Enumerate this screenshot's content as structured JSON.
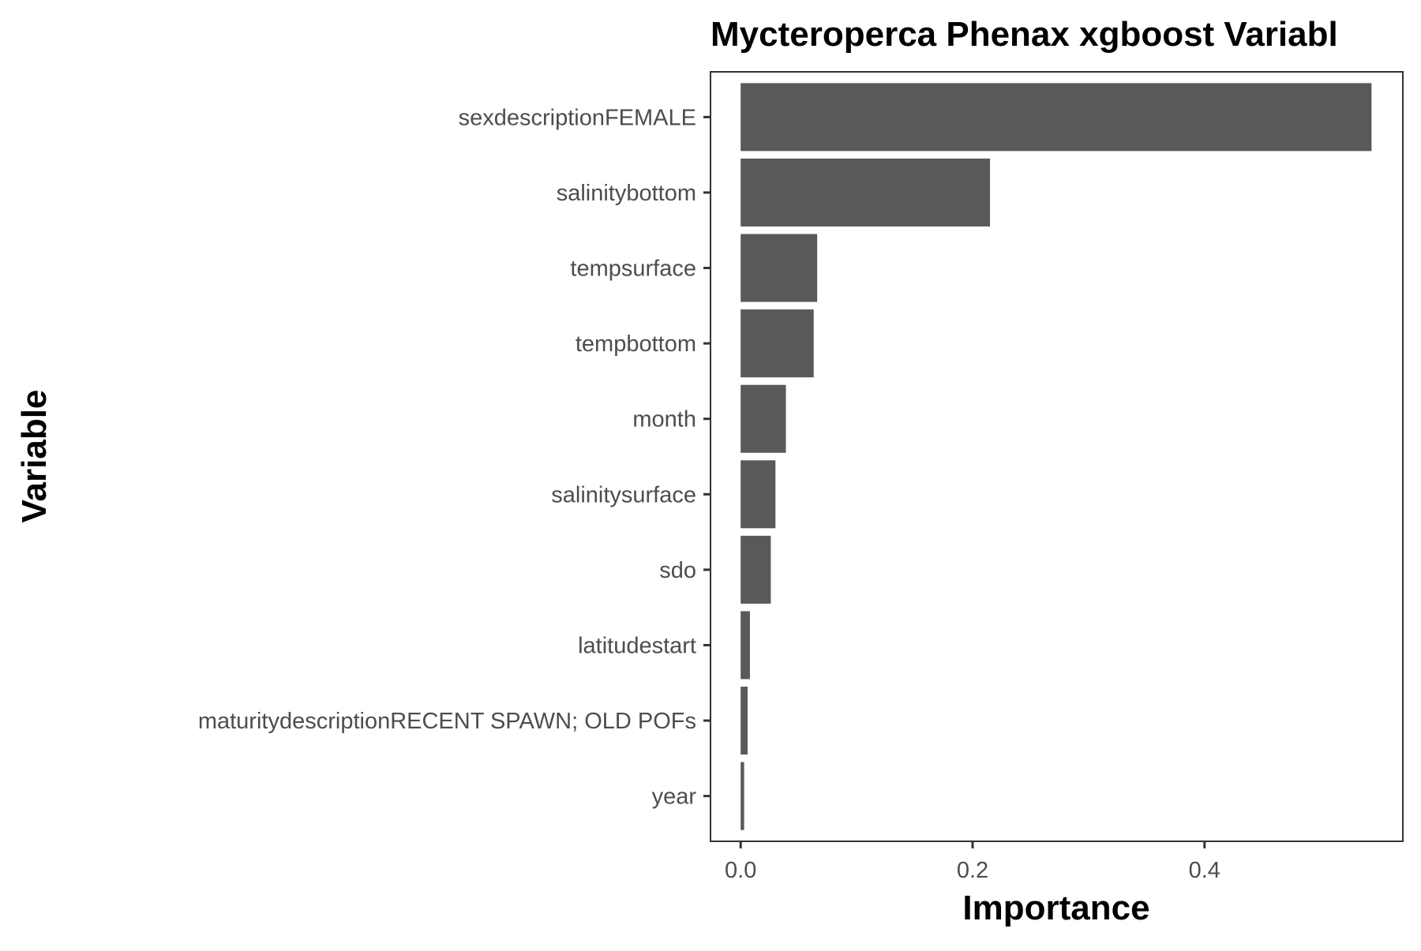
{
  "chart_data": {
    "type": "bar",
    "orientation": "horizontal",
    "title": "Mycteroperca Phenax xgboost Variabl",
    "xlabel": "Importance",
    "ylabel": "Variable",
    "categories": [
      "sexdescriptionFEMALE",
      "salinitybottom",
      "tempsurface",
      "tempbottom",
      "month",
      "salinitysurface",
      "sdo",
      "latitudestart",
      "maturitydescriptionRECENT SPAWN; OLD POFs",
      "year"
    ],
    "values": [
      0.544,
      0.215,
      0.066,
      0.063,
      0.039,
      0.03,
      0.026,
      0.008,
      0.006,
      0.003
    ],
    "xlim": [
      -0.026,
      0.571
    ],
    "xticks": [
      0.0,
      0.2,
      0.4
    ],
    "xtick_labels": [
      "0.0",
      "0.2",
      "0.4"
    ],
    "bar_color": "#595959",
    "grid": false,
    "legend": "none"
  }
}
